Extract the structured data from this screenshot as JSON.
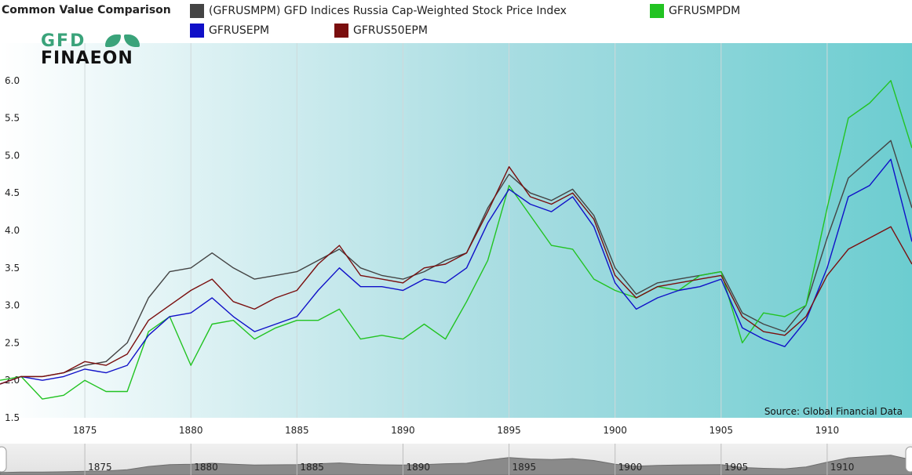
{
  "header": {
    "title": "Common Value Comparison",
    "source": "Source: Global Financial Data"
  },
  "legend": [
    {
      "label": "(GFRUSMPM) GFD Indices Russia Cap-Weighted Stock Price Index",
      "color": "#444444"
    },
    {
      "label": "GFRUSMPDM",
      "color": "#22c322"
    },
    {
      "label": "GFRUSEPM",
      "color": "#1010c8"
    },
    {
      "label": "GFRUS50EPM",
      "color": "#7a0e0e"
    }
  ],
  "logo": {
    "top": "GFD",
    "bottom": "FINAEON"
  },
  "navigator": {
    "ticks": [
      "1875",
      "1880",
      "1885",
      "1890",
      "1895",
      "1900",
      "1905",
      "1910"
    ]
  },
  "chart_data": {
    "type": "line",
    "title": "Common Value Comparison",
    "xlim": [
      1871,
      1914
    ],
    "ylim": [
      1.5,
      6.5
    ],
    "x_ticks": [
      1875,
      1880,
      1885,
      1890,
      1895,
      1900,
      1905,
      1910
    ],
    "y_ticks": [
      1.5,
      2.0,
      2.5,
      3.0,
      3.5,
      4.0,
      4.5,
      5.0,
      5.5,
      6.0
    ],
    "grid": "vertical",
    "x": [
      1871,
      1872,
      1873,
      1874,
      1875,
      1876,
      1877,
      1878,
      1879,
      1880,
      1881,
      1882,
      1883,
      1884,
      1885,
      1886,
      1887,
      1888,
      1889,
      1890,
      1891,
      1892,
      1893,
      1894,
      1895,
      1896,
      1897,
      1898,
      1899,
      1900,
      1901,
      1902,
      1903,
      1904,
      1905,
      1906,
      1907,
      1908,
      1909,
      1910,
      1911,
      1912,
      1913,
      1914
    ],
    "series": [
      {
        "name": "(GFRUSMPM) GFD Indices Russia Cap-Weighted Stock Price Index",
        "color": "#444444",
        "values": [
          1.95,
          2.05,
          2.05,
          2.1,
          2.2,
          2.25,
          2.5,
          3.1,
          3.45,
          3.5,
          3.7,
          3.5,
          3.35,
          3.4,
          3.45,
          3.6,
          3.75,
          3.5,
          3.4,
          3.35,
          3.45,
          3.6,
          3.7,
          4.3,
          4.75,
          4.5,
          4.4,
          4.55,
          4.2,
          3.5,
          3.15,
          3.3,
          3.35,
          3.4,
          3.45,
          2.9,
          2.75,
          2.65,
          3.0,
          3.9,
          4.7,
          4.95,
          5.2,
          4.3
        ]
      },
      {
        "name": "GFRUSMPDM",
        "color": "#22c322",
        "values": [
          2.0,
          2.05,
          1.75,
          1.8,
          2.0,
          1.85,
          1.85,
          2.65,
          2.85,
          2.2,
          2.75,
          2.8,
          2.55,
          2.7,
          2.8,
          2.8,
          2.95,
          2.55,
          2.6,
          2.55,
          2.75,
          2.55,
          3.05,
          3.6,
          4.6,
          4.2,
          3.8,
          3.75,
          3.35,
          3.2,
          3.1,
          3.25,
          3.2,
          3.4,
          3.45,
          2.5,
          2.9,
          2.85,
          3.0,
          4.3,
          5.5,
          5.7,
          6.0,
          5.1
        ]
      },
      {
        "name": "GFRUSEPM",
        "color": "#1010c8",
        "values": [
          1.95,
          2.05,
          2.0,
          2.05,
          2.15,
          2.1,
          2.2,
          2.6,
          2.85,
          2.9,
          3.1,
          2.85,
          2.65,
          2.75,
          2.85,
          3.2,
          3.5,
          3.25,
          3.25,
          3.2,
          3.35,
          3.3,
          3.5,
          4.1,
          4.55,
          4.35,
          4.25,
          4.45,
          4.05,
          3.3,
          2.95,
          3.1,
          3.2,
          3.25,
          3.35,
          2.7,
          2.55,
          2.45,
          2.8,
          3.5,
          4.45,
          4.6,
          4.95,
          3.85
        ]
      },
      {
        "name": "GFRUS50EPM",
        "color": "#7a0e0e",
        "values": [
          1.95,
          2.05,
          2.05,
          2.1,
          2.25,
          2.2,
          2.35,
          2.8,
          3.0,
          3.2,
          3.35,
          3.05,
          2.95,
          3.1,
          3.2,
          3.55,
          3.8,
          3.4,
          3.35,
          3.3,
          3.5,
          3.55,
          3.7,
          4.25,
          4.85,
          4.45,
          4.35,
          4.5,
          4.15,
          3.4,
          3.1,
          3.25,
          3.3,
          3.35,
          3.4,
          2.85,
          2.65,
          2.6,
          2.85,
          3.4,
          3.75,
          3.9,
          4.05,
          3.55
        ]
      }
    ]
  }
}
